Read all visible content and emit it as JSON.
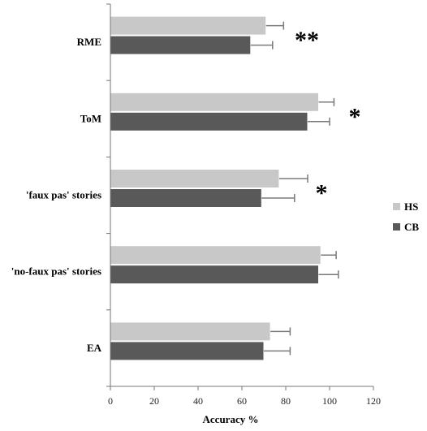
{
  "chart_data": {
    "type": "bar",
    "orientation": "horizontal",
    "categories": [
      "RME",
      "ToM",
      "'faux pas' stories",
      "'no-faux pas' stories",
      "EA"
    ],
    "series": [
      {
        "name": "HS",
        "color": "#c8c8c8",
        "values": [
          71,
          95,
          77,
          96,
          73
        ],
        "errors": [
          8,
          7,
          13,
          7,
          9
        ]
      },
      {
        "name": "CB",
        "color": "#595959",
        "values": [
          64,
          90,
          69,
          95,
          70
        ],
        "errors": [
          10,
          10,
          15,
          9,
          12
        ]
      }
    ],
    "significance": [
      "**",
      "*",
      "*",
      "",
      ""
    ],
    "xlabel": "Accuracy %",
    "ylabel": "",
    "title": "",
    "xlim": [
      0,
      120
    ],
    "xticks": [
      "0",
      "20",
      "40",
      "60",
      "80",
      "100",
      "120"
    ],
    "grid": false,
    "legend_position": "right"
  }
}
